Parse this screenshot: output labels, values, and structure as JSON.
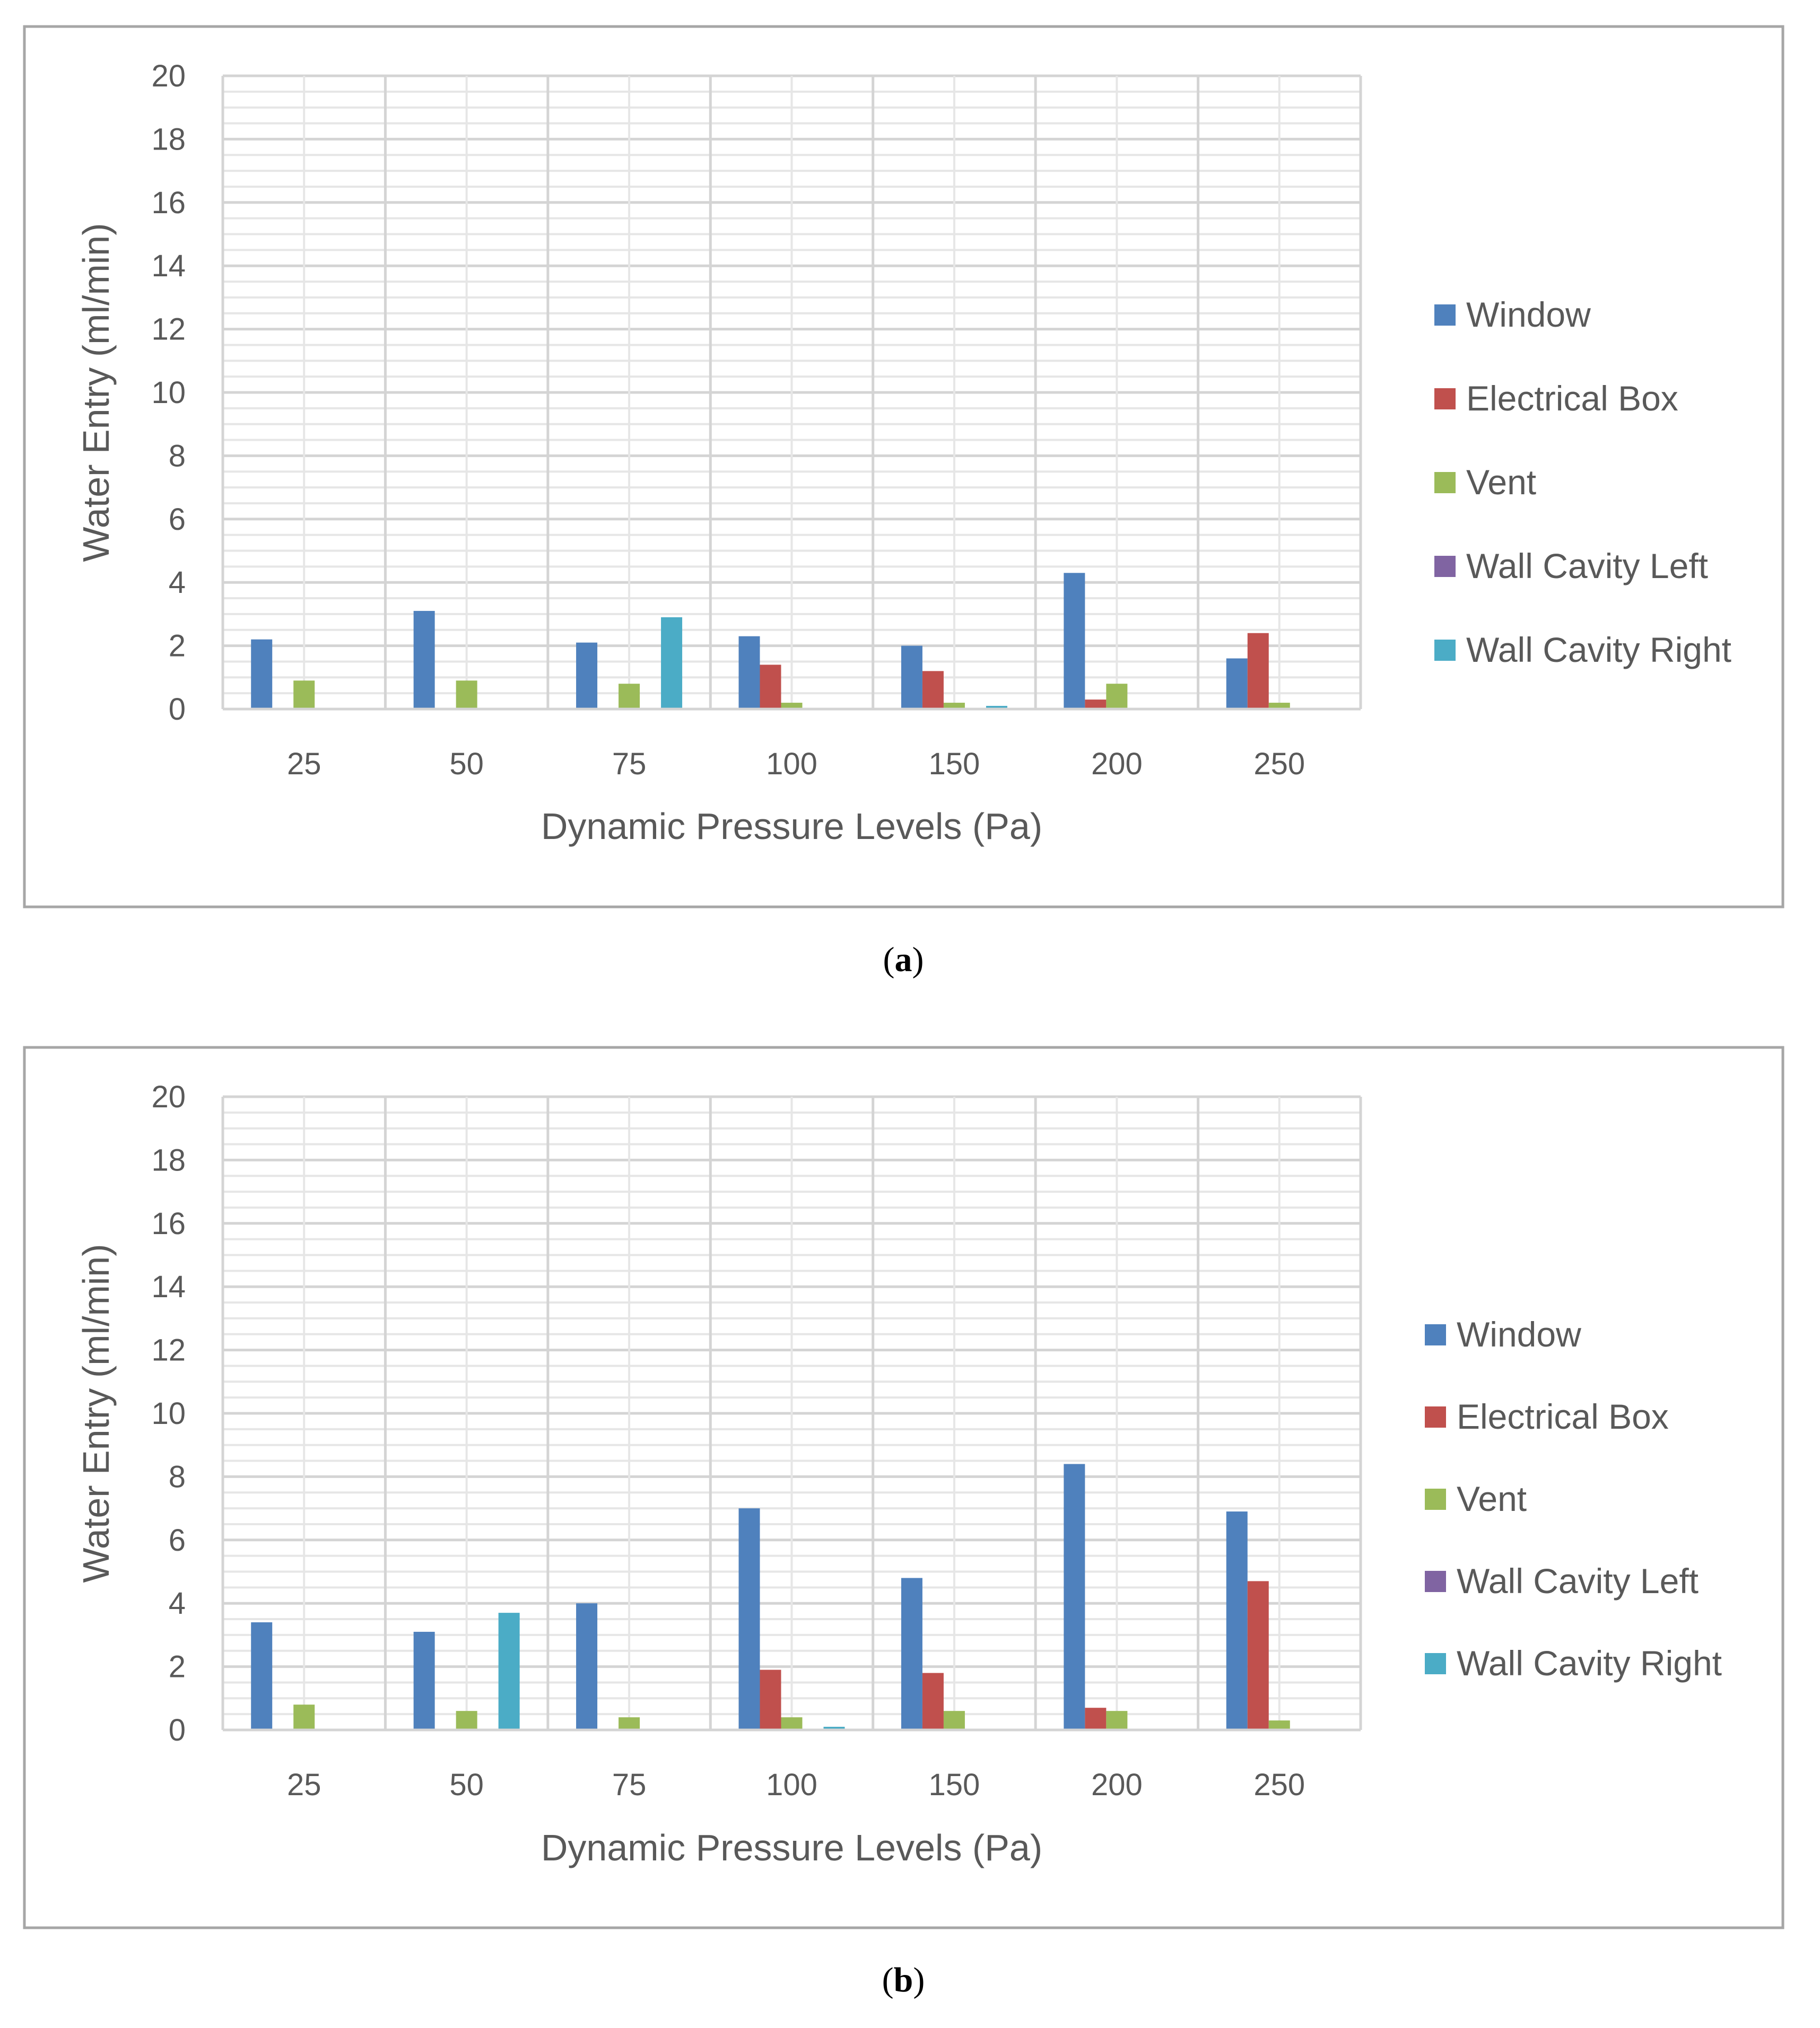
{
  "figure": {
    "series_names": [
      "Window",
      "Electrical Box",
      "Vent",
      "Wall Cavity Left",
      "Wall Cavity Right"
    ],
    "series_colors": [
      "#4F81BD",
      "#C0504D",
      "#9BBB59",
      "#8064A2",
      "#4BACC6"
    ]
  },
  "chart_data": [
    {
      "type": "bar",
      "panel_label": "a",
      "caption_open": "(",
      "caption_letter": "a",
      "caption_close": ")",
      "xlabel": "Dynamic Pressure Levels (Pa)",
      "ylabel": "Water Entry (ml/min)",
      "ylim": [
        0,
        20
      ],
      "yticks": [
        "0",
        "2",
        "4",
        "6",
        "8",
        "10",
        "12",
        "14",
        "16",
        "18",
        "20"
      ],
      "categories": [
        "25",
        "50",
        "75",
        "100",
        "150",
        "200",
        "250"
      ],
      "legend_position": "right",
      "series": [
        {
          "name": "Window",
          "color": "#4F81BD",
          "values": [
            2.2,
            3.1,
            2.1,
            2.3,
            2.0,
            4.3,
            1.6
          ]
        },
        {
          "name": "Electrical Box",
          "color": "#C0504D",
          "values": [
            0,
            0,
            0,
            1.4,
            1.2,
            0.3,
            2.4
          ]
        },
        {
          "name": "Vent",
          "color": "#9BBB59",
          "values": [
            0.9,
            0.9,
            0.8,
            0.2,
            0.2,
            0.8,
            0.2
          ]
        },
        {
          "name": "Wall Cavity Left",
          "color": "#8064A2",
          "values": [
            0,
            0,
            0,
            0,
            0,
            0,
            0
          ]
        },
        {
          "name": "Wall Cavity Right",
          "color": "#4BACC6",
          "values": [
            0,
            0,
            2.9,
            0,
            0.1,
            0,
            0
          ]
        }
      ]
    },
    {
      "type": "bar",
      "panel_label": "b",
      "caption_open": "(",
      "caption_letter": "b",
      "caption_close": ")",
      "xlabel": "Dynamic Pressure Levels (Pa)",
      "ylabel": "Water Entry (ml/min)",
      "ylim": [
        0,
        20
      ],
      "yticks": [
        "0",
        "2",
        "4",
        "6",
        "8",
        "10",
        "12",
        "14",
        "16",
        "18",
        "20"
      ],
      "categories": [
        "25",
        "50",
        "75",
        "100",
        "150",
        "200",
        "250"
      ],
      "legend_position": "right",
      "series": [
        {
          "name": "Window",
          "color": "#4F81BD",
          "values": [
            3.4,
            3.1,
            4.0,
            7.0,
            4.8,
            8.4,
            6.9
          ]
        },
        {
          "name": "Electrical Box",
          "color": "#C0504D",
          "values": [
            0,
            0,
            0,
            1.9,
            1.8,
            0.7,
            4.7
          ]
        },
        {
          "name": "Vent",
          "color": "#9BBB59",
          "values": [
            0.8,
            0.6,
            0.4,
            0.4,
            0.6,
            0.6,
            0.3
          ]
        },
        {
          "name": "Wall Cavity Left",
          "color": "#8064A2",
          "values": [
            0,
            0,
            0,
            0,
            0,
            0,
            0
          ]
        },
        {
          "name": "Wall Cavity Right",
          "color": "#4BACC6",
          "values": [
            0,
            3.7,
            0,
            0.1,
            0,
            0,
            0
          ]
        }
      ]
    }
  ]
}
